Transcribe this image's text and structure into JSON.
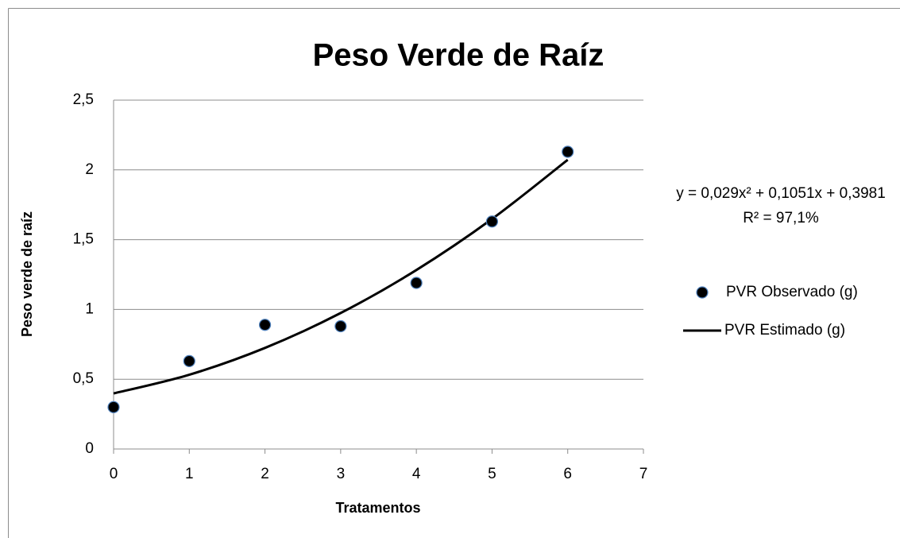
{
  "chart_data": {
    "type": "scatter",
    "title": "Peso Verde de Raíz",
    "xlabel": "Tratamentos",
    "ylabel": "Peso verde de raíz",
    "xlim": [
      0,
      7
    ],
    "ylim": [
      0,
      2.5
    ],
    "xticks": [
      0,
      1,
      2,
      3,
      4,
      5,
      6,
      7
    ],
    "yticks": [
      0,
      {
        "value": 0.5,
        "label": "0,5"
      },
      1,
      {
        "value": 1.5,
        "label": "1,5"
      },
      2,
      {
        "value": 2.5,
        "label": "2,5"
      }
    ],
    "grid": true,
    "legend": "right",
    "annotations": [
      "y = 0,029x² + 0,1051x + 0,3981",
      "R² = 97,1%"
    ],
    "series": [
      {
        "name": "PVR Observado (g)",
        "color": "#000000",
        "kind": "points",
        "x": [
          0,
          1,
          2,
          3,
          4,
          5,
          6
        ],
        "values": [
          0.3,
          0.63,
          0.89,
          0.88,
          1.19,
          1.63,
          2.13
        ]
      },
      {
        "name": "PVR Estimado (g)",
        "color": "#000000",
        "kind": "line",
        "x": [
          0,
          1,
          2,
          3,
          4,
          5,
          6
        ],
        "values": [
          0.3981,
          0.5322,
          0.7243,
          0.9744,
          1.2825,
          1.6486,
          2.0727
        ]
      }
    ]
  }
}
